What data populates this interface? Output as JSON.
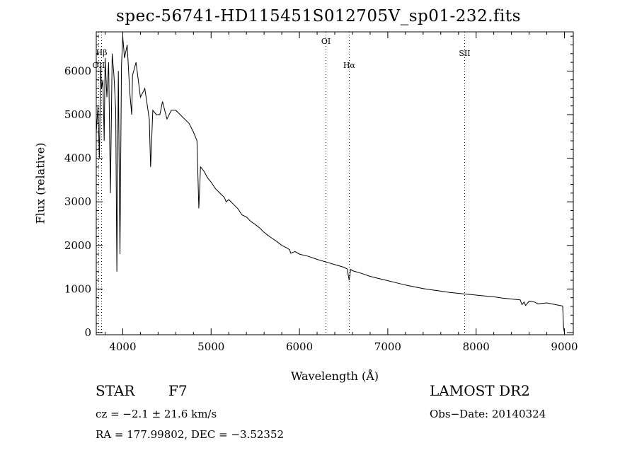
{
  "header": {
    "title": "spec-56741-HD115451S012705V_sp01-232.fits"
  },
  "info": {
    "object_class": "STAR",
    "subclass": "F7",
    "survey": "LAMOST DR2",
    "cz": "cz = −2.1 ± 21.6 km/s",
    "obs_date": "Obs−Date: 20140324",
    "radec": "RA = 177.99802, DEC =  −3.52352"
  },
  "colors": {
    "line": "#000000",
    "axes": "#000000",
    "background": "#ffffff"
  },
  "chart_data": {
    "type": "line",
    "title": "spec-56741-HD115451S012705V_sp01-232.fits",
    "xlabel": "Wavelength (Å)",
    "ylabel": "Flux (relative)",
    "xlim": [
      3700,
      9100
    ],
    "ylim": [
      -50,
      6900
    ],
    "xticks": [
      4000,
      5000,
      6000,
      7000,
      8000,
      9000
    ],
    "yticks": [
      0,
      1000,
      2000,
      3000,
      4000,
      5000,
      6000
    ],
    "grid": false,
    "series": [
      {
        "x": [
          3700,
          3720,
          3735,
          3750,
          3760,
          3775,
          3790,
          3800,
          3820,
          3840,
          3860,
          3880,
          3900,
          3920,
          3933,
          3950,
          3968,
          3985,
          4000,
          4020,
          4050,
          4080,
          4101,
          4110,
          4150,
          4200,
          4250,
          4300,
          4315,
          4340,
          4380,
          4420,
          4450,
          4500,
          4550,
          4600,
          4650,
          4700,
          4750,
          4800,
          4840,
          4861,
          4880,
          4920,
          4960,
          5000,
          5050,
          5100,
          5150,
          5170,
          5200,
          5250,
          5300,
          5350,
          5400,
          5450,
          5500,
          5550,
          5600,
          5650,
          5700,
          5750,
          5800,
          5850,
          5890,
          5900,
          5950,
          6000,
          6100,
          6200,
          6300,
          6400,
          6500,
          6540,
          6563,
          6580,
          6600,
          6700,
          6800,
          6900,
          7000,
          7100,
          7200,
          7300,
          7400,
          7500,
          7600,
          7700,
          7800,
          7900,
          8000,
          8100,
          8200,
          8300,
          8400,
          8498,
          8520,
          8542,
          8560,
          8600,
          8662,
          8700,
          8800,
          8900,
          8980,
          8990,
          9000
        ],
        "y": [
          4600,
          5200,
          4000,
          6100,
          5600,
          5800,
          4400,
          6300,
          5400,
          6200,
          3200,
          6400,
          5900,
          5100,
          1400,
          6000,
          1800,
          6100,
          6800,
          6300,
          6600,
          5500,
          5000,
          5900,
          6200,
          5400,
          5600,
          4900,
          3800,
          5100,
          5000,
          5000,
          5300,
          4900,
          5100,
          5100,
          5000,
          4900,
          4800,
          4600,
          4400,
          2850,
          3800,
          3700,
          3550,
          3450,
          3300,
          3200,
          3100,
          3000,
          3050,
          2950,
          2850,
          2700,
          2650,
          2550,
          2480,
          2400,
          2300,
          2220,
          2150,
          2080,
          2000,
          1950,
          1900,
          1820,
          1860,
          1800,
          1750,
          1680,
          1620,
          1560,
          1500,
          1460,
          1200,
          1450,
          1420,
          1360,
          1290,
          1240,
          1190,
          1140,
          1090,
          1050,
          1010,
          980,
          950,
          920,
          900,
          880,
          860,
          840,
          820,
          790,
          770,
          750,
          640,
          700,
          620,
          720,
          700,
          660,
          680,
          640,
          610,
          100,
          0
        ]
      }
    ],
    "lines": [
      {
        "label": "OII",
        "x": 3727
      },
      {
        "label": "Hβ",
        "x": 3760
      },
      {
        "label": "OI",
        "x": 6300
      },
      {
        "label": "Hα",
        "x": 6563
      },
      {
        "label": "SII",
        "x": 7870
      }
    ]
  }
}
